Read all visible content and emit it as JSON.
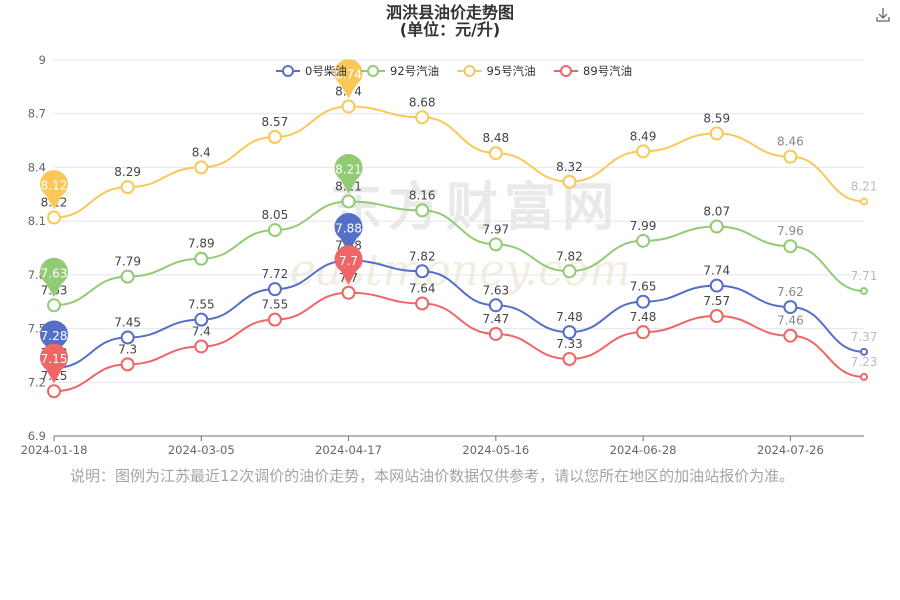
{
  "header": {
    "title_line1": "泗洪县油价走势图",
    "title_line2": "(单位：元/升)"
  },
  "toolbar": {
    "download_icon": "download-icon"
  },
  "note": "说明：图例为江苏最近12次调价的油价走势，本网站油价数据仅供参考，请以您所在地区的加油站报价为准。",
  "watermark": {
    "logo_text": "东方财富网",
    "url_text": "eastmoney.com"
  },
  "chart_data": {
    "type": "line",
    "title": "泗洪县油价走势图 (单位：元/升)",
    "x_labels": [
      "2024-01-18",
      "2024-03-05",
      "2024-04-17",
      "2024-05-16",
      "2024-06-28",
      "2024-07-26"
    ],
    "x_points": [
      "2024-01-18",
      "",
      "2024-03-05",
      "",
      "2024-04-17",
      "",
      "2024-05-16",
      "",
      "2024-06-28",
      "",
      "2024-07-26",
      ""
    ],
    "ylim": [
      6.9,
      9
    ],
    "y_ticks": [
      "6.9",
      "7.2",
      "7.5",
      "7.8",
      "8.1",
      "8.4",
      "8.7",
      "9"
    ],
    "grid": true,
    "legend_position": "top-center",
    "series": [
      {
        "name": "0号柴油",
        "color": "#5470c6",
        "values": [
          7.28,
          7.45,
          7.55,
          7.72,
          7.88,
          7.82,
          7.63,
          7.48,
          7.65,
          7.74,
          7.62,
          7.37
        ],
        "pins": [
          {
            "index": 0,
            "label": "7.28"
          },
          {
            "index": 4,
            "label": "7.88"
          }
        ]
      },
      {
        "name": "92号汽油",
        "color": "#91cc75",
        "values": [
          7.63,
          7.79,
          7.89,
          8.05,
          8.21,
          8.16,
          7.97,
          7.82,
          7.99,
          8.07,
          7.96,
          7.71
        ],
        "pins": [
          {
            "index": 0,
            "label": "7.63"
          },
          {
            "index": 4,
            "label": "8.21"
          }
        ]
      },
      {
        "name": "95号汽油",
        "color": "#fac858",
        "values": [
          8.12,
          8.29,
          8.4,
          8.57,
          8.74,
          8.68,
          8.48,
          8.32,
          8.49,
          8.59,
          8.46,
          8.21
        ],
        "pins": [
          {
            "index": 0,
            "label": "8.12"
          },
          {
            "index": 4,
            "label": "8.74"
          }
        ]
      },
      {
        "name": "89号汽油",
        "color": "#ee6666",
        "values": [
          7.15,
          7.3,
          7.4,
          7.55,
          7.7,
          7.64,
          7.47,
          7.33,
          7.48,
          7.57,
          7.46,
          7.23
        ],
        "pins": [
          {
            "index": 0,
            "label": "7.15"
          },
          {
            "index": 4,
            "label": "7.7"
          }
        ]
      }
    ]
  }
}
